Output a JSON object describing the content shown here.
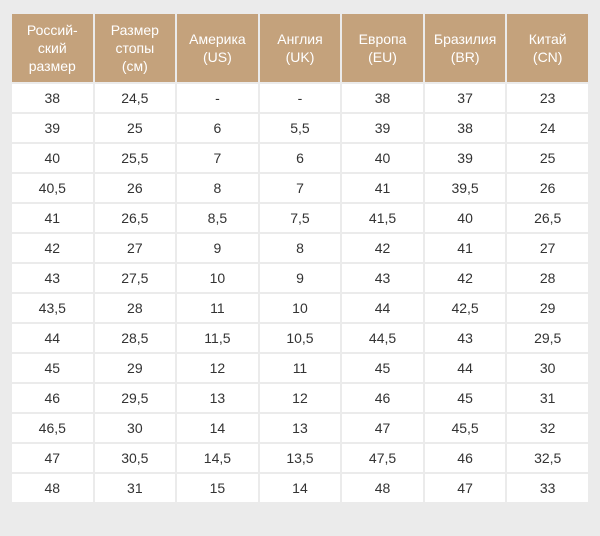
{
  "table": {
    "headers": [
      {
        "line1": "Россий-",
        "line2": "ский",
        "line3": "размер"
      },
      {
        "line1": "Размер",
        "line2": "стопы",
        "line3": "(см)"
      },
      {
        "line1": "Америка",
        "line2": "(US)",
        "line3": ""
      },
      {
        "line1": "Англия",
        "line2": "(UK)",
        "line3": ""
      },
      {
        "line1": "Европа",
        "line2": "(EU)",
        "line3": ""
      },
      {
        "line1": "Бразилия",
        "line2": "(BR)",
        "line3": ""
      },
      {
        "line1": "Китай",
        "line2": "(CN)",
        "line3": ""
      }
    ],
    "rows": [
      [
        "38",
        "24,5",
        "-",
        "-",
        "38",
        "37",
        "23"
      ],
      [
        "39",
        "25",
        "6",
        "5,5",
        "39",
        "38",
        "24"
      ],
      [
        "40",
        "25,5",
        "7",
        "6",
        "40",
        "39",
        "25"
      ],
      [
        "40,5",
        "26",
        "8",
        "7",
        "41",
        "39,5",
        "26"
      ],
      [
        "41",
        "26,5",
        "8,5",
        "7,5",
        "41,5",
        "40",
        "26,5"
      ],
      [
        "42",
        "27",
        "9",
        "8",
        "42",
        "41",
        "27"
      ],
      [
        "43",
        "27,5",
        "10",
        "9",
        "43",
        "42",
        "28"
      ],
      [
        "43,5",
        "28",
        "11",
        "10",
        "44",
        "42,5",
        "29"
      ],
      [
        "44",
        "28,5",
        "11,5",
        "10,5",
        "44,5",
        "43",
        "29,5"
      ],
      [
        "45",
        "29",
        "12",
        "11",
        "45",
        "44",
        "30"
      ],
      [
        "46",
        "29,5",
        "13",
        "12",
        "46",
        "45",
        "31"
      ],
      [
        "46,5",
        "30",
        "14",
        "13",
        "47",
        "45,5",
        "32"
      ],
      [
        "47",
        "30,5",
        "14,5",
        "13,5",
        "47,5",
        "46",
        "32,5"
      ],
      [
        "48",
        "31",
        "15",
        "14",
        "48",
        "47",
        "33"
      ]
    ]
  },
  "colors": {
    "header_bg": "#c4a27c",
    "header_text": "#ffffff",
    "cell_bg": "#ffffff",
    "page_bg": "#ebebeb"
  }
}
